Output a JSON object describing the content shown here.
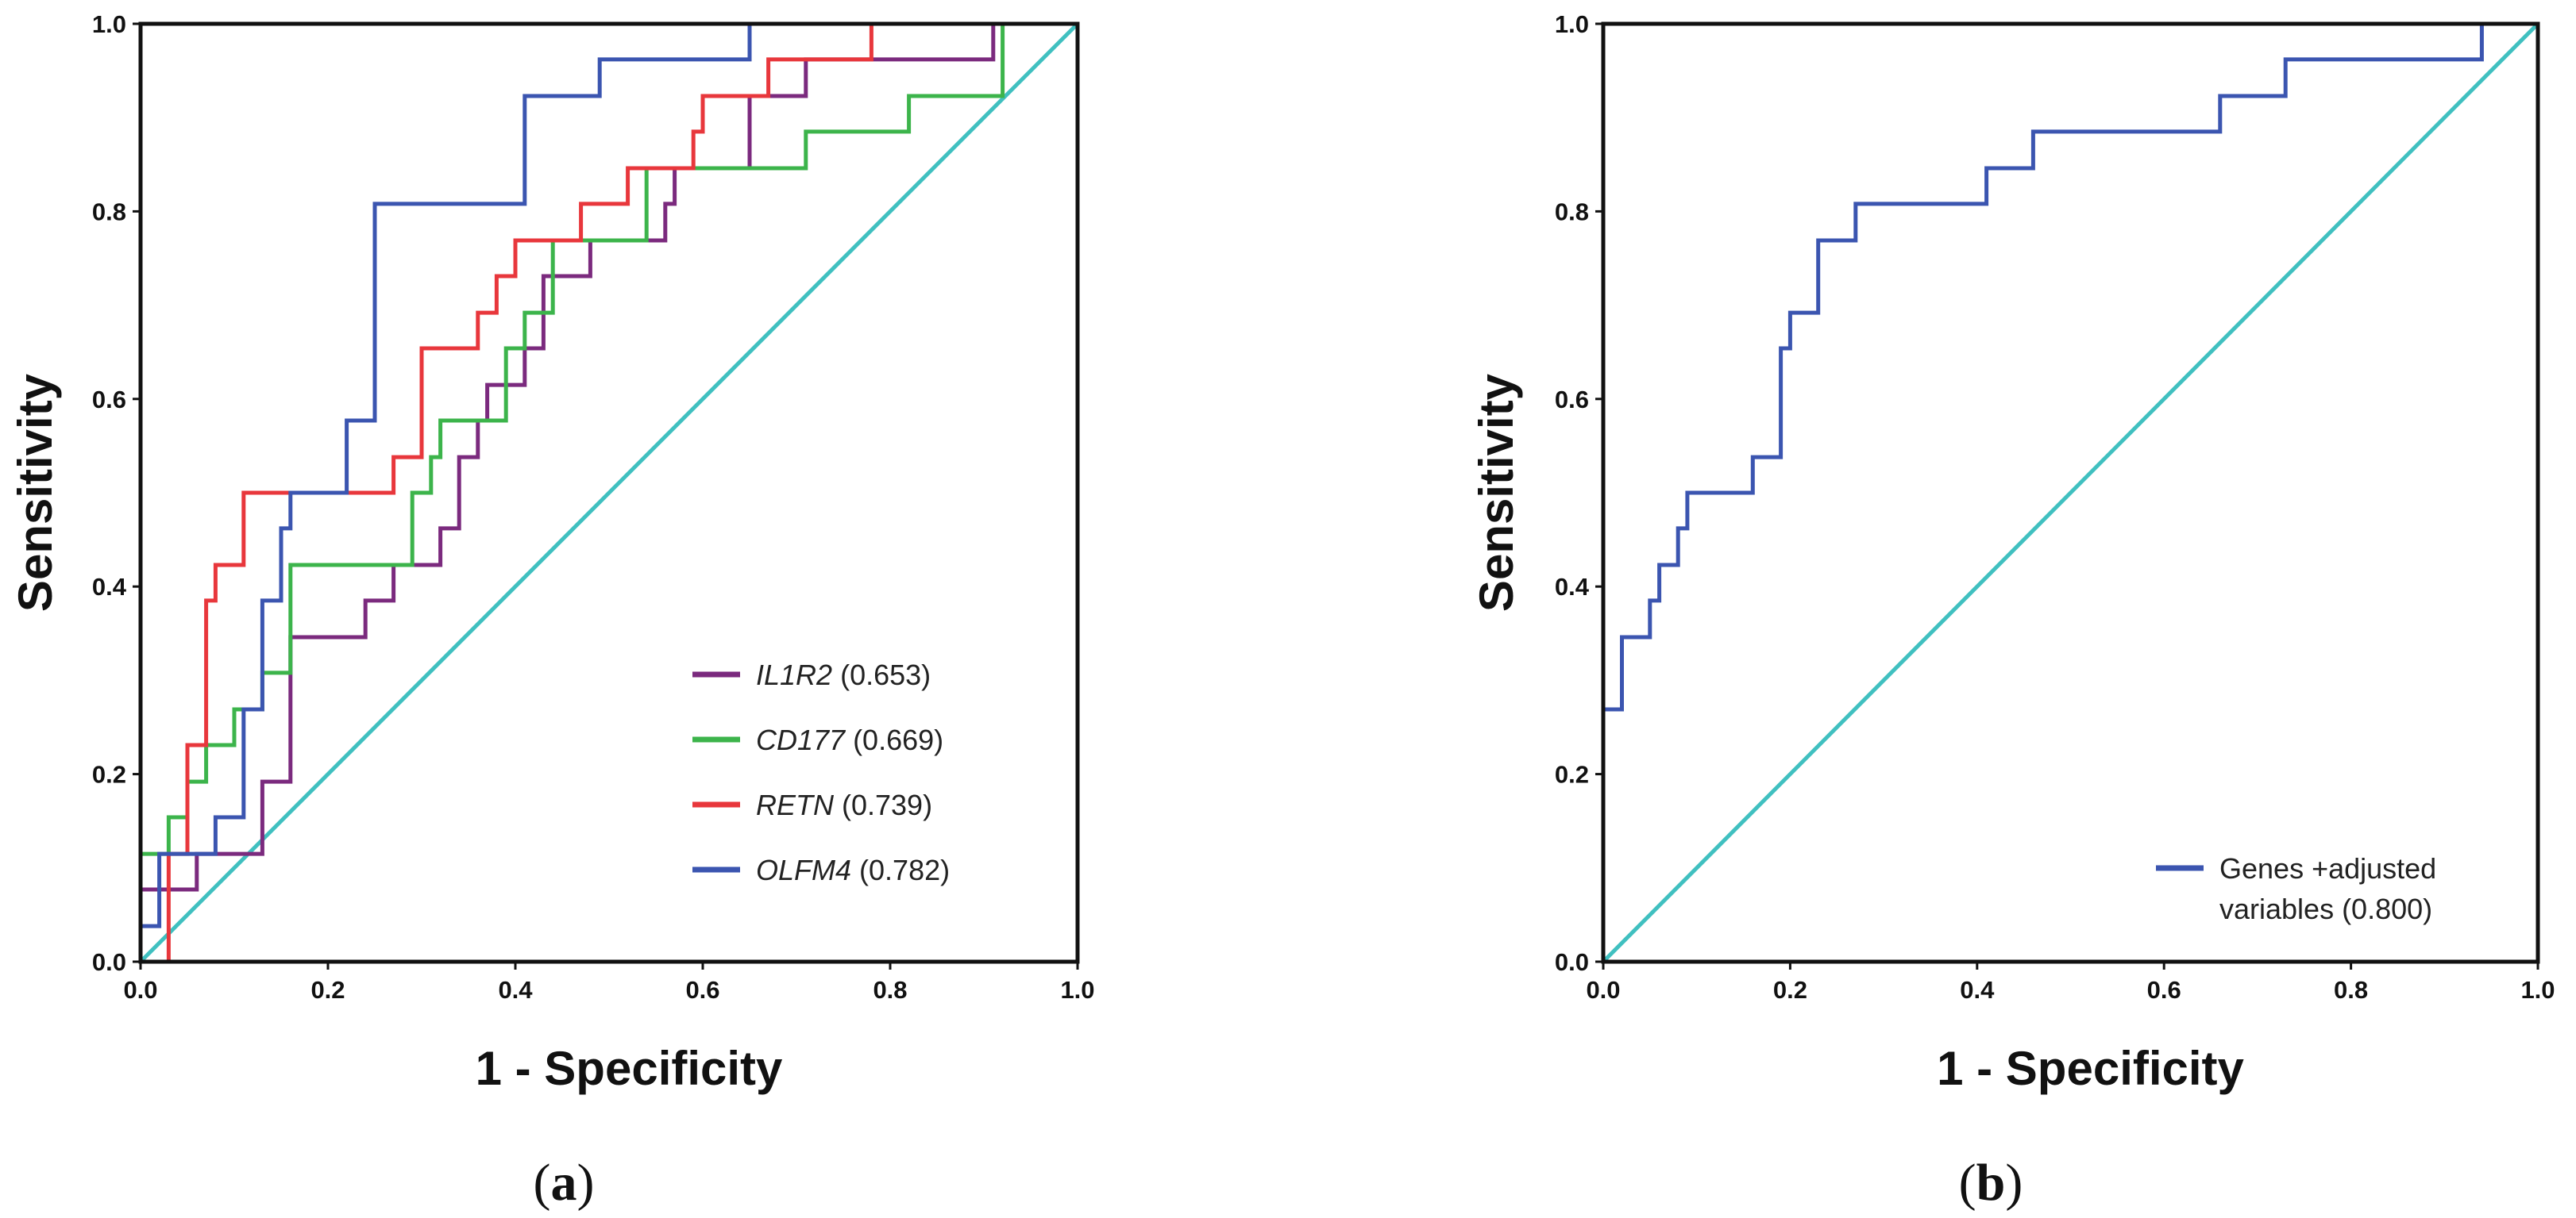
{
  "chart_data": [
    {
      "type": "line",
      "panel": "a",
      "xlabel": "1 - Specificity",
      "ylabel": "Sensitivity",
      "xlim": [
        0.0,
        1.0
      ],
      "ylim": [
        0.0,
        1.0
      ],
      "xticks": [
        "0.0",
        "0.2",
        "0.4",
        "0.6",
        "0.8",
        "1.0"
      ],
      "yticks": [
        "0.0",
        "0.2",
        "0.4",
        "0.6",
        "0.8",
        "1.0"
      ],
      "legend_position": "bottom-right",
      "reference_line": {
        "color": "#40c0c0",
        "points": [
          [
            0,
            0
          ],
          [
            1,
            1
          ]
        ]
      },
      "series": [
        {
          "name": "IL1R2",
          "auc": "(0.653)",
          "color": "#7b2a7e",
          "points": [
            [
              0,
              0
            ],
            [
              0,
              0.077
            ],
            [
              0.06,
              0.077
            ],
            [
              0.06,
              0.115
            ],
            [
              0.13,
              0.115
            ],
            [
              0.13,
              0.192
            ],
            [
              0.16,
              0.192
            ],
            [
              0.16,
              0.346
            ],
            [
              0.24,
              0.346
            ],
            [
              0.24,
              0.385
            ],
            [
              0.27,
              0.385
            ],
            [
              0.27,
              0.423
            ],
            [
              0.32,
              0.423
            ],
            [
              0.32,
              0.462
            ],
            [
              0.34,
              0.462
            ],
            [
              0.34,
              0.538
            ],
            [
              0.36,
              0.538
            ],
            [
              0.36,
              0.577
            ],
            [
              0.37,
              0.577
            ],
            [
              0.37,
              0.615
            ],
            [
              0.41,
              0.615
            ],
            [
              0.41,
              0.654
            ],
            [
              0.43,
              0.654
            ],
            [
              0.43,
              0.731
            ],
            [
              0.48,
              0.731
            ],
            [
              0.48,
              0.769
            ],
            [
              0.56,
              0.769
            ],
            [
              0.56,
              0.808
            ],
            [
              0.57,
              0.808
            ],
            [
              0.57,
              0.846
            ],
            [
              0.65,
              0.846
            ],
            [
              0.65,
              0.923
            ],
            [
              0.71,
              0.923
            ],
            [
              0.71,
              0.962
            ],
            [
              0.91,
              0.962
            ],
            [
              0.91,
              1.0
            ],
            [
              1.0,
              1.0
            ]
          ]
        },
        {
          "name": "CD177",
          "auc": "(0.669)",
          "color": "#3cb44b",
          "points": [
            [
              0,
              0
            ],
            [
              0,
              0.115
            ],
            [
              0.03,
              0.115
            ],
            [
              0.03,
              0.154
            ],
            [
              0.05,
              0.154
            ],
            [
              0.05,
              0.192
            ],
            [
              0.07,
              0.192
            ],
            [
              0.07,
              0.231
            ],
            [
              0.1,
              0.231
            ],
            [
              0.1,
              0.269
            ],
            [
              0.13,
              0.269
            ],
            [
              0.13,
              0.308
            ],
            [
              0.16,
              0.308
            ],
            [
              0.16,
              0.423
            ],
            [
              0.29,
              0.423
            ],
            [
              0.29,
              0.5
            ],
            [
              0.31,
              0.5
            ],
            [
              0.31,
              0.538
            ],
            [
              0.32,
              0.538
            ],
            [
              0.32,
              0.577
            ],
            [
              0.39,
              0.577
            ],
            [
              0.39,
              0.654
            ],
            [
              0.41,
              0.654
            ],
            [
              0.41,
              0.692
            ],
            [
              0.44,
              0.692
            ],
            [
              0.44,
              0.769
            ],
            [
              0.54,
              0.769
            ],
            [
              0.54,
              0.846
            ],
            [
              0.71,
              0.846
            ],
            [
              0.71,
              0.885
            ],
            [
              0.82,
              0.885
            ],
            [
              0.82,
              0.923
            ],
            [
              0.92,
              0.923
            ],
            [
              0.92,
              1.0
            ],
            [
              1.0,
              1.0
            ]
          ]
        },
        {
          "name": "RETN",
          "auc": "(0.739)",
          "color": "#e8373c",
          "points": [
            [
              0,
              0
            ],
            [
              0.03,
              0
            ],
            [
              0.03,
              0.115
            ],
            [
              0.05,
              0.115
            ],
            [
              0.05,
              0.231
            ],
            [
              0.07,
              0.231
            ],
            [
              0.07,
              0.385
            ],
            [
              0.08,
              0.385
            ],
            [
              0.08,
              0.423
            ],
            [
              0.11,
              0.423
            ],
            [
              0.11,
              0.5
            ],
            [
              0.27,
              0.5
            ],
            [
              0.27,
              0.538
            ],
            [
              0.3,
              0.538
            ],
            [
              0.3,
              0.654
            ],
            [
              0.36,
              0.654
            ],
            [
              0.36,
              0.692
            ],
            [
              0.38,
              0.692
            ],
            [
              0.38,
              0.731
            ],
            [
              0.4,
              0.731
            ],
            [
              0.4,
              0.769
            ],
            [
              0.47,
              0.769
            ],
            [
              0.47,
              0.808
            ],
            [
              0.52,
              0.808
            ],
            [
              0.52,
              0.846
            ],
            [
              0.59,
              0.846
            ],
            [
              0.59,
              0.885
            ],
            [
              0.6,
              0.885
            ],
            [
              0.6,
              0.923
            ],
            [
              0.67,
              0.923
            ],
            [
              0.67,
              0.962
            ],
            [
              0.78,
              0.962
            ],
            [
              0.78,
              1.0
            ],
            [
              1.0,
              1.0
            ]
          ]
        },
        {
          "name": "OLFM4",
          "auc": "(0.782)",
          "color": "#3b55b0",
          "points": [
            [
              0,
              0
            ],
            [
              0,
              0.038
            ],
            [
              0.02,
              0.038
            ],
            [
              0.02,
              0.115
            ],
            [
              0.08,
              0.115
            ],
            [
              0.08,
              0.154
            ],
            [
              0.11,
              0.154
            ],
            [
              0.11,
              0.269
            ],
            [
              0.13,
              0.269
            ],
            [
              0.13,
              0.385
            ],
            [
              0.15,
              0.385
            ],
            [
              0.15,
              0.462
            ],
            [
              0.16,
              0.462
            ],
            [
              0.16,
              0.5
            ],
            [
              0.22,
              0.5
            ],
            [
              0.22,
              0.577
            ],
            [
              0.25,
              0.577
            ],
            [
              0.25,
              0.808
            ],
            [
              0.41,
              0.808
            ],
            [
              0.41,
              0.923
            ],
            [
              0.49,
              0.923
            ],
            [
              0.49,
              0.962
            ],
            [
              0.65,
              0.962
            ],
            [
              0.65,
              1.0
            ],
            [
              1.0,
              1.0
            ]
          ]
        }
      ]
    },
    {
      "type": "line",
      "panel": "b",
      "xlabel": "1 - Specificity",
      "ylabel": "Sensitivity",
      "xlim": [
        0.0,
        1.0
      ],
      "ylim": [
        0.0,
        1.0
      ],
      "xticks": [
        "0.0",
        "0.2",
        "0.4",
        "0.6",
        "0.8",
        "1.0"
      ],
      "yticks": [
        "0.0",
        "0.2",
        "0.4",
        "0.6",
        "0.8",
        "1.0"
      ],
      "legend_position": "bottom-right",
      "reference_line": {
        "color": "#40c0c0",
        "points": [
          [
            0,
            0
          ],
          [
            1,
            1
          ]
        ]
      },
      "series": [
        {
          "name": "Genes +adjusted",
          "name_line2": "variables (0.800)",
          "color": "#3b55b0",
          "points": [
            [
              0,
              0
            ],
            [
              0,
              0.269
            ],
            [
              0.02,
              0.269
            ],
            [
              0.02,
              0.346
            ],
            [
              0.05,
              0.346
            ],
            [
              0.05,
              0.385
            ],
            [
              0.06,
              0.385
            ],
            [
              0.06,
              0.423
            ],
            [
              0.08,
              0.423
            ],
            [
              0.08,
              0.462
            ],
            [
              0.09,
              0.462
            ],
            [
              0.09,
              0.5
            ],
            [
              0.16,
              0.5
            ],
            [
              0.16,
              0.538
            ],
            [
              0.19,
              0.538
            ],
            [
              0.19,
              0.654
            ],
            [
              0.2,
              0.654
            ],
            [
              0.2,
              0.692
            ],
            [
              0.23,
              0.692
            ],
            [
              0.23,
              0.769
            ],
            [
              0.27,
              0.769
            ],
            [
              0.27,
              0.808
            ],
            [
              0.41,
              0.808
            ],
            [
              0.41,
              0.846
            ],
            [
              0.46,
              0.846
            ],
            [
              0.46,
              0.885
            ],
            [
              0.66,
              0.885
            ],
            [
              0.66,
              0.923
            ],
            [
              0.73,
              0.923
            ],
            [
              0.73,
              0.962
            ],
            [
              0.94,
              0.962
            ],
            [
              0.94,
              1.0
            ],
            [
              1.0,
              1.0
            ]
          ]
        }
      ]
    }
  ],
  "captions": {
    "a": {
      "open": "(",
      "letter": "a",
      "close": ")"
    },
    "b": {
      "open": "(",
      "letter": "b",
      "close": ")"
    }
  }
}
